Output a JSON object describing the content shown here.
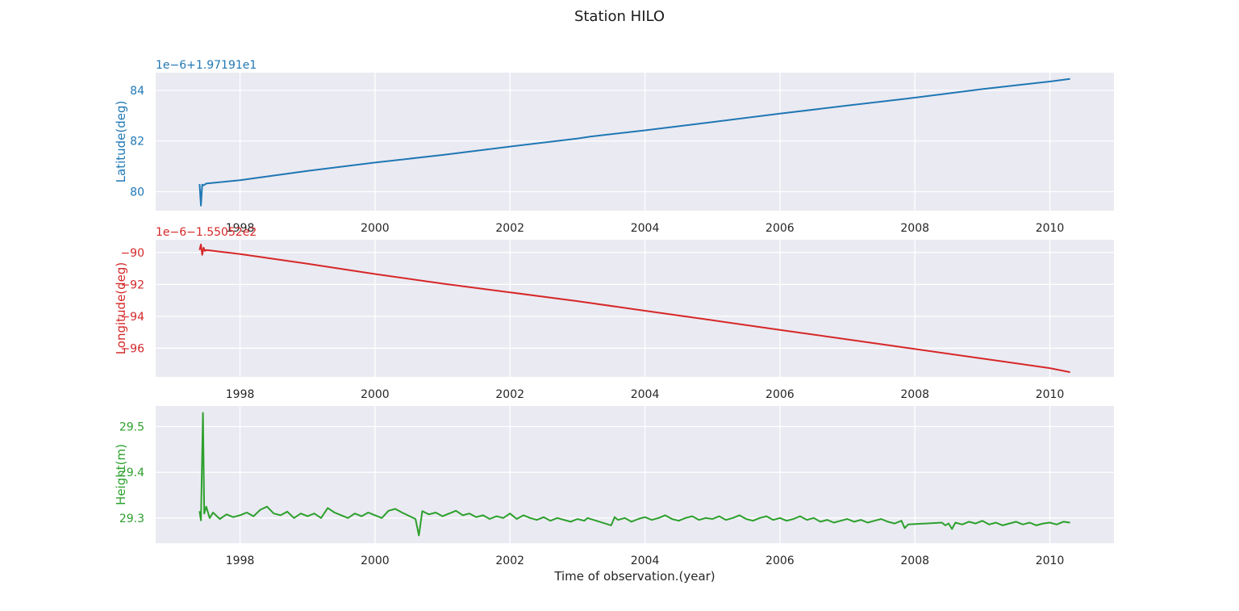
{
  "figure": {
    "title": "Station HILO"
  },
  "chart_data": [
    {
      "type": "line",
      "ylabel": "Latitude(deg)",
      "xlabel": "",
      "offset_text": "1e−6+1.97191e1",
      "color": "#1f77b4",
      "xlim": [
        1996.75,
        2010.95
      ],
      "ylim": [
        79.25,
        84.7
      ],
      "x_ticks": [
        1998,
        2000,
        2002,
        2004,
        2006,
        2008,
        2010
      ],
      "x_tick_labels": [
        "1998",
        "2000",
        "2002",
        "2004",
        "2006",
        "2008",
        "2010"
      ],
      "y_ticks": [
        80,
        82,
        84
      ],
      "y_tick_labels": [
        "80",
        "82",
        "84"
      ],
      "grid": true,
      "x": [
        1997.4,
        1997.42,
        1997.44,
        1997.46,
        1997.5,
        1998.0,
        1999.0,
        2000.0,
        2001.0,
        2002.0,
        2003.0,
        2003.2,
        2004.0,
        2005.0,
        2006.0,
        2007.0,
        2007.9,
        2008.4,
        2009.0,
        2010.0,
        2010.3
      ],
      "y": [
        80.3,
        79.45,
        80.28,
        80.25,
        80.32,
        80.45,
        80.82,
        81.15,
        81.45,
        81.78,
        82.1,
        82.18,
        82.42,
        82.75,
        83.08,
        83.4,
        83.68,
        83.85,
        84.05,
        84.35,
        84.45
      ]
    },
    {
      "type": "line",
      "ylabel": "Longitude(deg)",
      "xlabel": "",
      "offset_text": "1e−6−1.55052e2",
      "color": "#d62728",
      "xlim": [
        1996.75,
        2010.95
      ],
      "ylim": [
        -97.8,
        -89.2
      ],
      "x_ticks": [
        1998,
        2000,
        2002,
        2004,
        2006,
        2008,
        2010
      ],
      "x_tick_labels": [
        "1998",
        "2000",
        "2002",
        "2004",
        "2006",
        "2008",
        "2010"
      ],
      "y_ticks": [
        -96,
        -94,
        -92,
        -90
      ],
      "y_tick_labels": [
        "−96",
        "−94",
        "−92",
        "−90"
      ],
      "grid": true,
      "x": [
        1997.4,
        1997.42,
        1997.44,
        1997.46,
        1997.48,
        1997.5,
        1998.0,
        1999.0,
        2000.0,
        2001.0,
        2002.0,
        2003.0,
        2004.0,
        2005.0,
        2006.0,
        2007.0,
        2008.0,
        2009.0,
        2010.0,
        2010.3
      ],
      "y": [
        -89.85,
        -89.5,
        -90.15,
        -89.7,
        -89.9,
        -89.85,
        -90.1,
        -90.7,
        -91.35,
        -91.95,
        -92.5,
        -93.05,
        -93.65,
        -94.25,
        -94.85,
        -95.45,
        -96.05,
        -96.65,
        -97.25,
        -97.5
      ]
    },
    {
      "type": "line",
      "ylabel": "Height(m)",
      "xlabel": "Time of observation.(year)",
      "color": "#2ca02c",
      "xlim": [
        1996.75,
        2010.95
      ],
      "ylim": [
        29.245,
        29.545
      ],
      "x_ticks": [
        1998,
        2000,
        2002,
        2004,
        2006,
        2008,
        2010
      ],
      "x_tick_labels": [
        "1998",
        "2000",
        "2002",
        "2004",
        "2006",
        "2008",
        "2010"
      ],
      "y_ticks": [
        29.3,
        29.4,
        29.5
      ],
      "y_tick_labels": [
        "29.3",
        "29.4",
        "29.5"
      ],
      "grid": true,
      "x": [
        1997.4,
        1997.42,
        1997.45,
        1997.47,
        1997.5,
        1997.55,
        1997.6,
        1997.7,
        1997.8,
        1997.9,
        1998.0,
        1998.1,
        1998.2,
        1998.3,
        1998.4,
        1998.5,
        1998.6,
        1998.7,
        1998.8,
        1998.9,
        1999.0,
        1999.1,
        1999.2,
        1999.3,
        1999.4,
        1999.5,
        1999.6,
        1999.7,
        1999.8,
        1999.9,
        2000.0,
        2000.1,
        2000.2,
        2000.3,
        2000.4,
        2000.5,
        2000.6,
        2000.65,
        2000.7,
        2000.8,
        2000.9,
        2001.0,
        2001.1,
        2001.2,
        2001.3,
        2001.4,
        2001.5,
        2001.6,
        2001.7,
        2001.8,
        2001.9,
        2002.0,
        2002.1,
        2002.2,
        2002.3,
        2002.4,
        2002.5,
        2002.6,
        2002.7,
        2002.8,
        2002.9,
        2003.0,
        2003.1,
        2003.15,
        2003.5,
        2003.55,
        2003.6,
        2003.7,
        2003.8,
        2003.9,
        2004.0,
        2004.1,
        2004.2,
        2004.3,
        2004.4,
        2004.5,
        2004.6,
        2004.7,
        2004.8,
        2004.9,
        2005.0,
        2005.1,
        2005.2,
        2005.3,
        2005.4,
        2005.5,
        2005.6,
        2005.7,
        2005.8,
        2005.9,
        2006.0,
        2006.1,
        2006.2,
        2006.3,
        2006.4,
        2006.5,
        2006.6,
        2006.7,
        2006.8,
        2006.9,
        2007.0,
        2007.1,
        2007.2,
        2007.3,
        2007.4,
        2007.5,
        2007.6,
        2007.7,
        2007.8,
        2007.85,
        2007.9,
        2008.4,
        2008.45,
        2008.5,
        2008.55,
        2008.6,
        2008.7,
        2008.8,
        2008.9,
        2009.0,
        2009.1,
        2009.2,
        2009.3,
        2009.4,
        2009.5,
        2009.6,
        2009.7,
        2009.8,
        2009.9,
        2010.0,
        2010.1,
        2010.2,
        2010.3
      ],
      "y": [
        29.315,
        29.295,
        29.53,
        29.31,
        29.325,
        29.3,
        29.312,
        29.298,
        29.308,
        29.302,
        29.306,
        29.312,
        29.304,
        29.318,
        29.325,
        29.31,
        29.306,
        29.314,
        29.3,
        29.31,
        29.304,
        29.31,
        29.3,
        29.322,
        29.312,
        29.306,
        29.3,
        29.31,
        29.304,
        29.312,
        29.306,
        29.3,
        29.316,
        29.32,
        29.312,
        29.305,
        29.298,
        29.262,
        29.315,
        29.308,
        29.312,
        29.304,
        29.31,
        29.316,
        29.306,
        29.31,
        29.302,
        29.306,
        29.298,
        29.304,
        29.3,
        29.31,
        29.298,
        29.306,
        29.3,
        29.296,
        29.302,
        29.294,
        29.3,
        29.296,
        29.292,
        29.298,
        29.294,
        29.3,
        29.284,
        29.302,
        29.296,
        29.3,
        29.292,
        29.298,
        29.302,
        29.296,
        29.3,
        29.306,
        29.298,
        29.294,
        29.3,
        29.304,
        29.296,
        29.3,
        29.298,
        29.304,
        29.296,
        29.3,
        29.306,
        29.298,
        29.294,
        29.3,
        29.304,
        29.296,
        29.3,
        29.294,
        29.298,
        29.304,
        29.296,
        29.3,
        29.292,
        29.296,
        29.29,
        29.294,
        29.298,
        29.292,
        29.296,
        29.29,
        29.294,
        29.298,
        29.292,
        29.288,
        29.294,
        29.278,
        29.286,
        29.29,
        29.284,
        29.288,
        29.276,
        29.29,
        29.286,
        29.292,
        29.288,
        29.294,
        29.286,
        29.29,
        29.284,
        29.288,
        29.292,
        29.286,
        29.29,
        29.284,
        29.288,
        29.29,
        29.286,
        29.292,
        29.29
      ]
    }
  ]
}
